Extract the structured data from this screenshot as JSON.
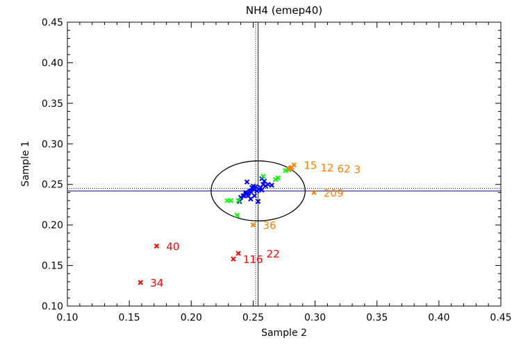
{
  "chart_data": {
    "type": "scatter",
    "title": "NH4 (emep40)",
    "xlabel": "Sample 2",
    "ylabel": "Sample 1",
    "xlim": [
      0.1,
      0.45
    ],
    "ylim": [
      0.1,
      0.45
    ],
    "xticks": [
      "0.10",
      "0.15",
      "0.20",
      "0.25",
      "0.30",
      "0.35",
      "0.40",
      "0.45"
    ],
    "yticks": [
      "0.10",
      "0.15",
      "0.20",
      "0.25",
      "0.30",
      "0.35",
      "0.40",
      "0.45"
    ],
    "grid": false,
    "marker": "x",
    "colors": {
      "blue": "#0000ff",
      "green": "#00ff00",
      "orange": "#ff8000",
      "red": "#ff0000",
      "axis": "#000000"
    },
    "reference_lines": {
      "vertical": [
        {
          "x": 0.254,
          "style": "solid",
          "color": "#0000ff"
        },
        {
          "x": 0.252,
          "style": "dotted",
          "color": "#000000"
        }
      ],
      "horizontal": [
        {
          "y": 0.242,
          "style": "solid",
          "color": "#000080"
        },
        {
          "y": 0.245,
          "style": "dotted",
          "color": "#000000"
        }
      ]
    },
    "ellipse": {
      "cx": 0.254,
      "cy": 0.242,
      "rx": 0.038,
      "ry": 0.037
    },
    "series": [
      {
        "color": "blue",
        "points": [
          [
            0.245,
            0.253
          ],
          [
            0.257,
            0.257
          ],
          [
            0.262,
            0.25
          ],
          [
            0.251,
            0.244
          ],
          [
            0.244,
            0.238
          ],
          [
            0.24,
            0.234
          ],
          [
            0.247,
            0.241
          ],
          [
            0.249,
            0.246
          ],
          [
            0.252,
            0.247
          ],
          [
            0.255,
            0.244
          ],
          [
            0.258,
            0.25
          ],
          [
            0.26,
            0.248
          ],
          [
            0.243,
            0.236
          ],
          [
            0.246,
            0.239
          ],
          [
            0.253,
            0.242
          ],
          [
            0.256,
            0.246
          ],
          [
            0.25,
            0.248
          ],
          [
            0.248,
            0.242
          ],
          [
            0.254,
            0.229
          ],
          [
            0.248,
            0.232
          ],
          [
            0.239,
            0.229
          ],
          [
            0.246,
            0.236
          ],
          [
            0.259,
            0.254
          ],
          [
            0.265,
            0.249
          ],
          [
            0.257,
            0.243
          ],
          [
            0.244,
            0.24
          ],
          [
            0.251,
            0.236
          ],
          [
            0.242,
            0.236
          ]
        ]
      },
      {
        "color": "green",
        "points": [
          [
            0.229,
            0.23
          ],
          [
            0.232,
            0.23
          ],
          [
            0.238,
            0.23
          ],
          [
            0.237,
            0.212
          ],
          [
            0.258,
            0.26
          ],
          [
            0.268,
            0.256
          ],
          [
            0.27,
            0.258
          ],
          [
            0.276,
            0.267
          ],
          [
            0.279,
            0.268
          ]
        ]
      },
      {
        "color": "orange",
        "points": [
          {
            "x": 0.25,
            "y": 0.2,
            "label": "36"
          },
          {
            "x": 0.299,
            "y": 0.24,
            "label": "209"
          },
          {
            "x": 0.283,
            "y": 0.274,
            "label": "15"
          },
          {
            "x": 0.281,
            "y": 0.271,
            "label": "12"
          },
          {
            "x": 0.28,
            "y": 0.27,
            "label": "62"
          },
          {
            "x": 0.279,
            "y": 0.269,
            "label": "3"
          }
        ]
      },
      {
        "color": "red",
        "points": [
          {
            "x": 0.172,
            "y": 0.174,
            "label": "40"
          },
          {
            "x": 0.159,
            "y": 0.129,
            "label": "34"
          },
          {
            "x": 0.234,
            "y": 0.158,
            "label": "116"
          },
          {
            "x": 0.238,
            "y": 0.165,
            "label": "22"
          }
        ]
      }
    ]
  }
}
